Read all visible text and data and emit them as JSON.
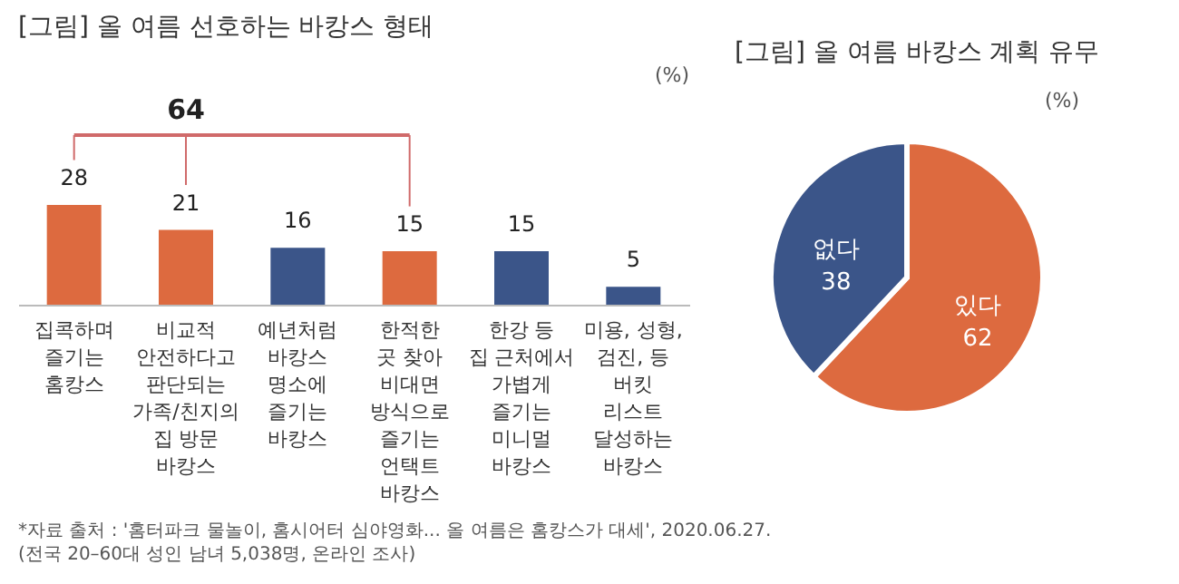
{
  "chart_data": [
    {
      "type": "bar",
      "title": "[그림] 올 여름 선호하는 바캉스 형태",
      "categories": [
        "집콕하며\n즐기는\n홈캉스",
        "비교적\n안전하다고\n판단되는\n가족/친지의\n집 방문\n바캉스",
        "예년처럼\n바캉스\n명소에\n즐기는\n바캉스",
        "한적한\n곳 찾아\n비대면\n방식으로\n즐기는\n언택트\n바캉스",
        "한강 등\n집 근처에서\n가볍게\n즐기는\n미니멀\n바캉스",
        "미용, 성형,\n검진, 등\n버킷\n리스트\n달성하는\n바캉스"
      ],
      "values": [
        28,
        21,
        16,
        15,
        15,
        5
      ],
      "colors": [
        "#dd6a3f",
        "#dd6a3f",
        "#3b5589",
        "#dd6a3f",
        "#3b5589",
        "#3b5589"
      ],
      "data_labels": true,
      "annotations": [
        "(%)",
        "64",
        "*자료 출처 : '홈터파크 물놀이, 홈시어터 심야영화... 올 여름은 홈캉스가 대세', 2020.06.27.",
        "(전국 20–60대 성인 남녀 5,038명, 온라인 조사)"
      ]
    },
    {
      "type": "pie",
      "title": "[그림] 올 여름 바캉스 계획 유무",
      "categories": [
        "있다",
        "없다"
      ],
      "values": [
        62,
        38
      ],
      "colors": [
        "#dd6a3f",
        "#3b5589"
      ],
      "data_labels": true,
      "annotations": [
        "(%)"
      ]
    }
  ]
}
